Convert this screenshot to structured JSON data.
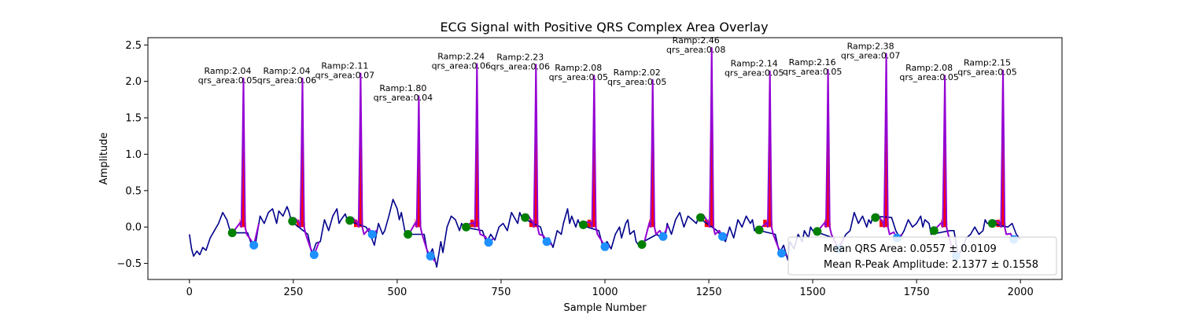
{
  "chart_data": {
    "type": "line",
    "title": "ECG Signal with Positive QRS Complex Area Overlay",
    "xlabel": "Sample Number",
    "ylabel": "Amplitude",
    "xlim": [
      -100,
      2100
    ],
    "ylim": [
      -0.72,
      2.6
    ],
    "xticks": [
      0,
      250,
      500,
      750,
      1000,
      1250,
      1500,
      1750,
      2000
    ],
    "yticks": [
      -0.5,
      0.0,
      0.5,
      1.0,
      1.5,
      2.0,
      2.5
    ],
    "xtick_labels": [
      "0",
      "250",
      "500",
      "750",
      "1000",
      "1250",
      "1500",
      "1750",
      "2000"
    ],
    "ytick_labels": [
      "−0.5",
      "0.0",
      "0.5",
      "1.0",
      "1.5",
      "2.0",
      "2.5"
    ],
    "grid": false,
    "colors": {
      "signal": "#00008b",
      "qrs_segment": "#9400d3",
      "qrs_area": "#ff0000",
      "q_marker": "#008000",
      "s_marker": "#1e90ff"
    },
    "beats": [
      {
        "r": 130,
        "ramp": 2.04,
        "qrs_area": 0.05,
        "q": [
          103,
          -0.08
        ],
        "s": [
          155,
          -0.25
        ],
        "label_line1": "Ramp:2.04",
        "label_line2": "qrs_area:0.05"
      },
      {
        "r": 272,
        "ramp": 2.04,
        "qrs_area": 0.06,
        "q": [
          248,
          0.08
        ],
        "s": [
          300,
          -0.38
        ],
        "label_line1": "Ramp:2.04",
        "label_line2": "qrs_area:0.06"
      },
      {
        "r": 412,
        "ramp": 2.11,
        "qrs_area": 0.07,
        "q": [
          386,
          0.09
        ],
        "s": [
          440,
          -0.1
        ],
        "label_line1": "Ramp:2.11",
        "label_line2": "qrs_area:0.07"
      },
      {
        "r": 552,
        "ramp": 1.8,
        "qrs_area": 0.04,
        "q": [
          526,
          -0.1
        ],
        "s": [
          580,
          -0.4
        ],
        "label_line1": "Ramp:1.80",
        "label_line2": "qrs_area:0.04"
      },
      {
        "r": 692,
        "ramp": 2.24,
        "qrs_area": 0.06,
        "q": [
          666,
          0.0
        ],
        "s": [
          720,
          -0.21
        ],
        "label_line1": "Ramp:2.24",
        "label_line2": "qrs_area:0.06"
      },
      {
        "r": 834,
        "ramp": 2.23,
        "qrs_area": 0.06,
        "q": [
          808,
          0.13
        ],
        "s": [
          860,
          -0.2
        ],
        "label_line1": "Ramp:2.23",
        "label_line2": "qrs_area:0.06"
      },
      {
        "r": 974,
        "ramp": 2.08,
        "qrs_area": 0.05,
        "q": [
          948,
          0.03
        ],
        "s": [
          1000,
          -0.27
        ],
        "label_line1": "Ramp:2.08",
        "label_line2": "qrs_area:0.05"
      },
      {
        "r": 1115,
        "ramp": 2.02,
        "qrs_area": 0.05,
        "q": [
          1089,
          -0.24
        ],
        "s": [
          1140,
          -0.13
        ],
        "label_line1": "Ramp:2.02",
        "label_line2": "qrs_area:0.05"
      },
      {
        "r": 1257,
        "ramp": 2.46,
        "qrs_area": 0.08,
        "q": [
          1230,
          0.13
        ],
        "s": [
          1283,
          -0.13
        ],
        "label_line1": "Ramp:2.46",
        "label_line2": "qrs_area:0.08"
      },
      {
        "r": 1397,
        "ramp": 2.14,
        "qrs_area": 0.05,
        "q": [
          1371,
          -0.04
        ],
        "s": [
          1425,
          -0.36
        ],
        "label_line1": "Ramp:2.14",
        "label_line2": "qrs_area:0.05"
      },
      {
        "r": 1537,
        "ramp": 2.16,
        "qrs_area": 0.05,
        "q": [
          1511,
          -0.06
        ],
        "s": [
          1563,
          -0.3
        ],
        "label_line1": "Ramp:2.16",
        "label_line2": "qrs_area:0.05"
      },
      {
        "r": 1677,
        "ramp": 2.38,
        "qrs_area": 0.07,
        "q": [
          1651,
          0.13
        ],
        "s": [
          1703,
          -0.15
        ],
        "label_line1": "Ramp:2.38",
        "label_line2": "qrs_area:0.07"
      },
      {
        "r": 1818,
        "ramp": 2.08,
        "qrs_area": 0.05,
        "q": [
          1792,
          -0.05
        ],
        "s": [
          1845,
          -0.4
        ],
        "label_line1": "Ramp:2.08",
        "label_line2": "qrs_area:0.05"
      },
      {
        "r": 1958,
        "ramp": 2.15,
        "qrs_area": 0.05,
        "q": [
          1932,
          0.05
        ],
        "s": [
          1984,
          -0.17
        ],
        "label_line1": "Ramp:2.15",
        "label_line2": "qrs_area:0.05"
      }
    ],
    "baseline_x": [
      0,
      5,
      10,
      18,
      25,
      32,
      40,
      50,
      60,
      70,
      80,
      90,
      95,
      100,
      140,
      150,
      160,
      170,
      180,
      190,
      200,
      210,
      215,
      225,
      235,
      240,
      245,
      285,
      295,
      305,
      315,
      325,
      335,
      345,
      355,
      360,
      365,
      375,
      380,
      425,
      435,
      445,
      455,
      465,
      470,
      480,
      490,
      500,
      505,
      510,
      515,
      520,
      565,
      575,
      585,
      595,
      605,
      610,
      620,
      630,
      640,
      650,
      655,
      660,
      705,
      715,
      725,
      735,
      745,
      755,
      765,
      775,
      785,
      790,
      795,
      800,
      845,
      855,
      865,
      875,
      885,
      895,
      900,
      910,
      915,
      920,
      930,
      935,
      940,
      985,
      995,
      1005,
      1015,
      1025,
      1035,
      1040,
      1050,
      1055,
      1060,
      1070,
      1075,
      1080,
      1125,
      1135,
      1145,
      1150,
      1160,
      1170,
      1180,
      1190,
      1200,
      1210,
      1220,
      1225,
      1270,
      1280,
      1290,
      1300,
      1310,
      1320,
      1330,
      1340,
      1350,
      1355,
      1360,
      1365,
      1410,
      1420,
      1430,
      1440,
      1445,
      1455,
      1465,
      1475,
      1480,
      1490,
      1495,
      1500,
      1505,
      1550,
      1560,
      1570,
      1580,
      1590,
      1600,
      1610,
      1620,
      1630,
      1635,
      1640,
      1645,
      1690,
      1700,
      1710,
      1720,
      1730,
      1740,
      1750,
      1760,
      1765,
      1770,
      1780,
      1785,
      1830,
      1840,
      1850,
      1860,
      1870,
      1880,
      1890,
      1900,
      1910,
      1915,
      1920,
      1925,
      1970,
      1980,
      1990,
      2000
    ],
    "baseline_y": [
      -0.1,
      -0.3,
      -0.4,
      -0.33,
      -0.38,
      -0.28,
      -0.32,
      -0.15,
      -0.05,
      0.05,
      0.2,
      0.1,
      0.0,
      -0.08,
      -0.08,
      -0.25,
      -0.2,
      0.15,
      0.05,
      0.2,
      0.25,
      0.05,
      0.22,
      0.15,
      0.28,
      0.2,
      0.08,
      -0.1,
      -0.38,
      -0.22,
      -0.2,
      0.1,
      -0.05,
      0.15,
      0.25,
      0.05,
      0.1,
      0.18,
      0.09,
      0.0,
      -0.1,
      -0.25,
      0.05,
      -0.1,
      -0.05,
      0.15,
      0.38,
      0.25,
      0.1,
      0.2,
      0.05,
      -0.1,
      -0.1,
      -0.42,
      -0.3,
      -0.55,
      -0.2,
      -0.35,
      0.0,
      0.15,
      0.1,
      -0.05,
      0.05,
      0.0,
      -0.05,
      -0.21,
      -0.1,
      -0.18,
      0.0,
      0.05,
      -0.05,
      0.2,
      0.1,
      0.05,
      0.2,
      0.13,
      0.0,
      -0.2,
      -0.15,
      -0.28,
      -0.05,
      -0.1,
      0.05,
      0.25,
      0.05,
      0.15,
      0.0,
      0.1,
      0.03,
      -0.05,
      -0.27,
      -0.2,
      -0.3,
      -0.1,
      0.0,
      -0.15,
      0.05,
      0.1,
      -0.1,
      -0.05,
      -0.2,
      -0.24,
      -0.1,
      -0.15,
      -0.13,
      0.05,
      -0.1,
      0.1,
      0.2,
      0.0,
      0.15,
      0.1,
      0.05,
      0.13,
      -0.05,
      -0.13,
      -0.2,
      0.0,
      -0.15,
      0.1,
      0.0,
      0.15,
      0.05,
      0.1,
      -0.05,
      -0.04,
      -0.1,
      -0.36,
      -0.25,
      -0.45,
      -0.2,
      -0.3,
      -0.1,
      -0.2,
      -0.05,
      -0.15,
      0.0,
      -0.05,
      -0.06,
      -0.15,
      -0.3,
      -0.2,
      -0.1,
      -0.05,
      0.2,
      0.05,
      0.15,
      0.0,
      0.1,
      0.05,
      0.15,
      0.13,
      -0.05,
      -0.15,
      -0.05,
      0.1,
      0.0,
      0.05,
      0.15,
      0.0,
      0.1,
      0.05,
      -0.1,
      -0.05,
      -0.05,
      -0.4,
      -0.3,
      -0.15,
      -0.1,
      0.0,
      -0.1,
      -0.05,
      0.1,
      0.05,
      0.05,
      0.0,
      0.05,
      -0.1,
      -0.17,
      -0.2,
      -0.12
    ],
    "legend": {
      "placement": "lower right",
      "entries": [
        "Mean QRS Area: 0.0557 ± 0.0109",
        "Mean R-Peak Amplitude: 2.1377 ± 0.1558"
      ]
    }
  }
}
